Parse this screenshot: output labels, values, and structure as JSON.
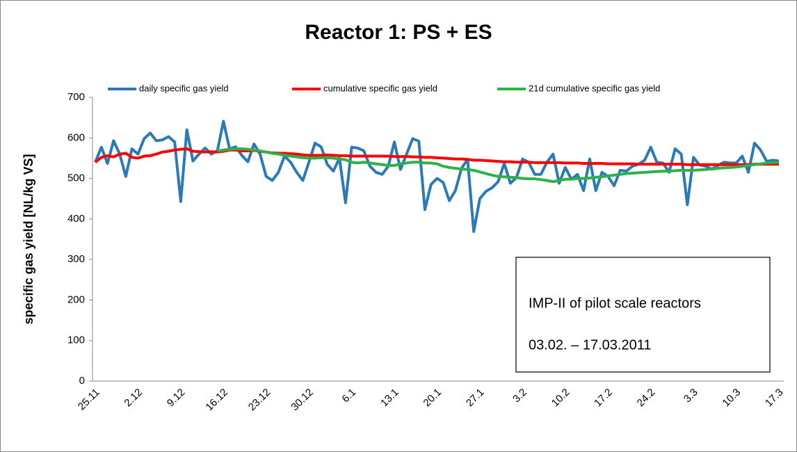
{
  "chart_data": {
    "type": "line",
    "title": "Reactor 1: PS + ES",
    "y_label": "specific gas yield [NL/kg VS]",
    "categories": [
      "25.11",
      null,
      null,
      null,
      null,
      null,
      null,
      "2.12",
      null,
      null,
      null,
      null,
      null,
      null,
      "9.12",
      null,
      null,
      null,
      null,
      null,
      null,
      "16.12",
      null,
      null,
      null,
      null,
      null,
      null,
      "23.12",
      null,
      null,
      null,
      null,
      null,
      null,
      "30.12",
      null,
      null,
      null,
      null,
      null,
      null,
      "6.1",
      null,
      null,
      null,
      null,
      null,
      null,
      "13.1",
      null,
      null,
      null,
      null,
      null,
      null,
      "20.1",
      null,
      null,
      null,
      null,
      null,
      null,
      "27.1",
      null,
      null,
      null,
      null,
      null,
      null,
      "3.2",
      null,
      null,
      null,
      null,
      null,
      null,
      "10.2",
      null,
      null,
      null,
      null,
      null,
      null,
      "17.2",
      null,
      null,
      null,
      null,
      null,
      null,
      "24.2",
      null,
      null,
      null,
      null,
      null,
      null,
      "3.3",
      null,
      null,
      null,
      null,
      null,
      null,
      "10.3",
      null,
      null,
      null,
      null,
      null,
      null,
      "17.3"
    ],
    "series": [
      {
        "name": "daily specific gas yield",
        "color": "#2a7ab9",
        "values": [
          540,
          577,
          537,
          593,
          560,
          505,
          573,
          560,
          598,
          612,
          593,
          595,
          603,
          590,
          443,
          620,
          543,
          560,
          575,
          560,
          568,
          641,
          573,
          578,
          557,
          541,
          585,
          560,
          505,
          495,
          515,
          555,
          540,
          515,
          495,
          540,
          587,
          578,
          535,
          518,
          550,
          440,
          577,
          575,
          568,
          530,
          515,
          510,
          530,
          590,
          522,
          560,
          598,
          592,
          423,
          485,
          500,
          490,
          445,
          470,
          525,
          547,
          369,
          450,
          468,
          477,
          492,
          537,
          488,
          502,
          548,
          540,
          510,
          510,
          540,
          560,
          488,
          527,
          498,
          510,
          470,
          548,
          470,
          515,
          505,
          482,
          520,
          518,
          530,
          535,
          545,
          577,
          540,
          538,
          515,
          573,
          560,
          435,
          552,
          533,
          530,
          523,
          532,
          540,
          538,
          538,
          555,
          515,
          587,
          570,
          542,
          545,
          543
        ]
      },
      {
        "name": "cumulative specific gas yield",
        "color": "#ff0000",
        "values": [
          540,
          552,
          556,
          553,
          560,
          562,
          552,
          550,
          555,
          556,
          560,
          565,
          567,
          570,
          572,
          573,
          567,
          566,
          565,
          566,
          565,
          567,
          570,
          570,
          568,
          568,
          569,
          567,
          565,
          563,
          562,
          562,
          561,
          560,
          558,
          557,
          557,
          557,
          558,
          557,
          556,
          556,
          555,
          555,
          555,
          555,
          555,
          555,
          555,
          554,
          554,
          554,
          553,
          553,
          552,
          552,
          551,
          550,
          549,
          548,
          548,
          547,
          545,
          545,
          544,
          543,
          542,
          541,
          541,
          540,
          540,
          540,
          539,
          539,
          539,
          539,
          539,
          538,
          538,
          538,
          537,
          537,
          537,
          537,
          536,
          536,
          536,
          536,
          536,
          535,
          535,
          535,
          535,
          535,
          535,
          535,
          535,
          534,
          534,
          534,
          534,
          534,
          534,
          534,
          534,
          534,
          534,
          534,
          535,
          535,
          535,
          535,
          535
        ]
      },
      {
        "name": "21d cumulative specific gas yield",
        "color": "#2db24a",
        "values": [
          null,
          null,
          null,
          null,
          null,
          null,
          null,
          null,
          null,
          null,
          null,
          null,
          null,
          null,
          null,
          null,
          null,
          null,
          null,
          null,
          568,
          570,
          572,
          573,
          573,
          572,
          570,
          568,
          565,
          562,
          560,
          557,
          555,
          553,
          551,
          550,
          550,
          551,
          551,
          550,
          548,
          546,
          540,
          538,
          540,
          538,
          536,
          534,
          532,
          532,
          536,
          538,
          540,
          540,
          538,
          538,
          536,
          530,
          527,
          525,
          523,
          522,
          520,
          516,
          512,
          508,
          505,
          504,
          503,
          502,
          500,
          499,
          499,
          497,
          495,
          492,
          495,
          498,
          498,
          500,
          500,
          501,
          503,
          504,
          506,
          508,
          510,
          512,
          513,
          514,
          515,
          516,
          517,
          518,
          518,
          519,
          520,
          520,
          520,
          521,
          522,
          523,
          525,
          526,
          527,
          528,
          530,
          532,
          534,
          536,
          538,
          539,
          540
        ]
      }
    ],
    "ylim": [
      0,
      700
    ],
    "yticks": [
      0,
      100,
      200,
      300,
      400,
      500,
      600,
      700
    ],
    "grid": false,
    "legend": "top",
    "annotation": [
      "IMP-II of pilot scale reactors",
      "03.02. – 17.03.2011"
    ]
  }
}
